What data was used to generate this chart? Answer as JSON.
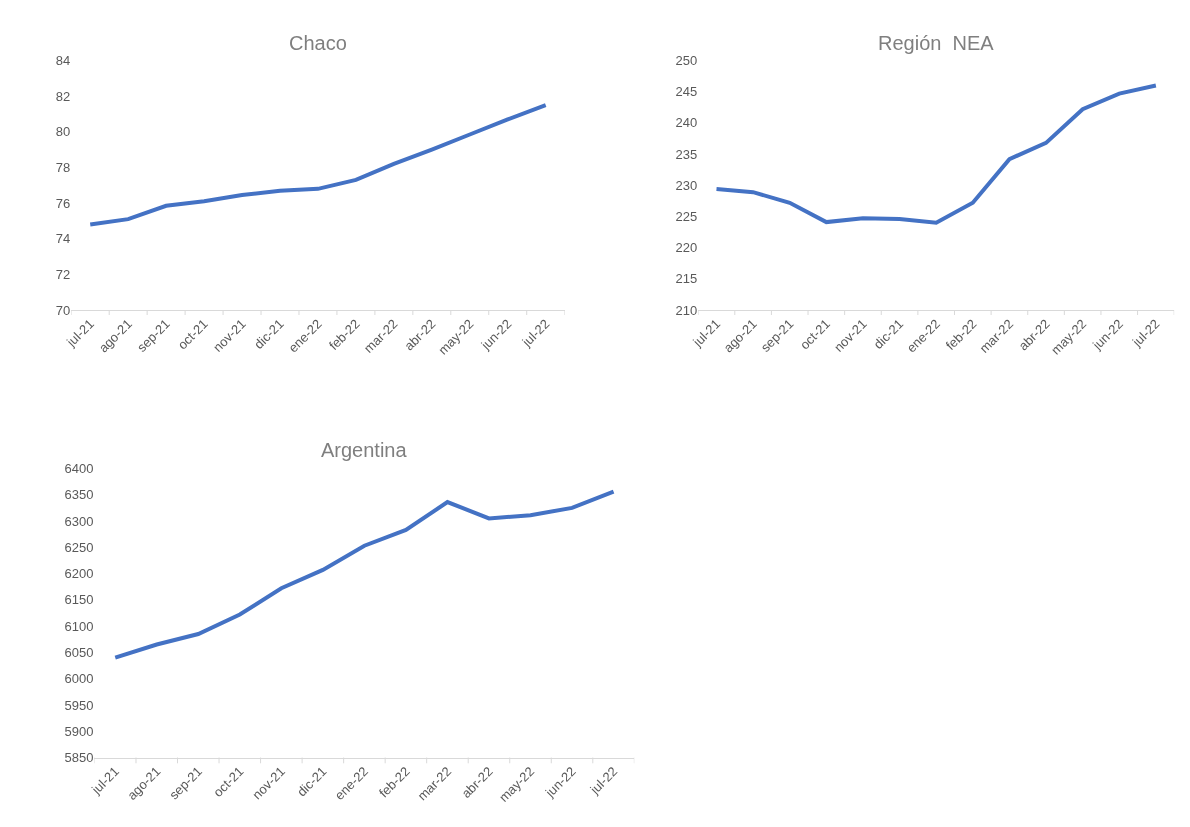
{
  "chart_data": [
    {
      "type": "line",
      "title": "Chaco",
      "categories": [
        "jul-21",
        "ago-21",
        "sep-21",
        "oct-21",
        "nov-21",
        "dic-21",
        "ene-22",
        "feb-22",
        "mar-22",
        "abr-22",
        "may-22",
        "jun-22",
        "jul-22"
      ],
      "series": [
        {
          "color": "#4472c4",
          "values": [
            74.8,
            75.1,
            75.85,
            76.1,
            76.45,
            76.7,
            76.8,
            77.3,
            78.2,
            79.0,
            79.85,
            80.7,
            81.5
          ]
        }
      ],
      "ylim": [
        70,
        84
      ],
      "yticks": [
        70,
        72,
        74,
        76,
        78,
        80,
        82,
        84
      ],
      "grid": false,
      "marker": "none",
      "line_style": "solid"
    },
    {
      "type": "line",
      "title": "Región  NEA",
      "categories": [
        "jul-21",
        "ago-21",
        "sep-21",
        "oct-21",
        "nov-21",
        "dic-21",
        "ene-22",
        "feb-22",
        "mar-22",
        "abr-22",
        "may-22",
        "jun-22",
        "jul-22"
      ],
      "series": [
        {
          "color": "#4472c4",
          "values": [
            229.4,
            228.9,
            227.2,
            224.1,
            224.7,
            224.6,
            224.0,
            227.2,
            234.2,
            236.8,
            242.2,
            244.7,
            246.0
          ]
        }
      ],
      "ylim": [
        210,
        250
      ],
      "yticks": [
        210,
        215,
        220,
        225,
        230,
        235,
        240,
        245,
        250
      ],
      "grid": false,
      "marker": "none",
      "line_style": "solid"
    },
    {
      "type": "line",
      "title": "Argentina",
      "categories": [
        "jul-21",
        "ago-21",
        "sep-21",
        "oct-21",
        "nov-21",
        "dic-21",
        "ene-22",
        "feb-22",
        "mar-22",
        "abr-22",
        "may-22",
        "jun-22",
        "jul-22"
      ],
      "series": [
        {
          "color": "#4472c4",
          "values": [
            6040,
            6065,
            6085,
            6122,
            6172,
            6207,
            6253,
            6283,
            6336,
            6305,
            6311,
            6325,
            6356
          ]
        }
      ],
      "ylim": [
        5850,
        6400
      ],
      "yticks": [
        5850,
        5900,
        5950,
        6000,
        6050,
        6100,
        6150,
        6200,
        6250,
        6300,
        6350,
        6400
      ],
      "grid": false,
      "marker": "none",
      "line_style": "solid"
    }
  ]
}
